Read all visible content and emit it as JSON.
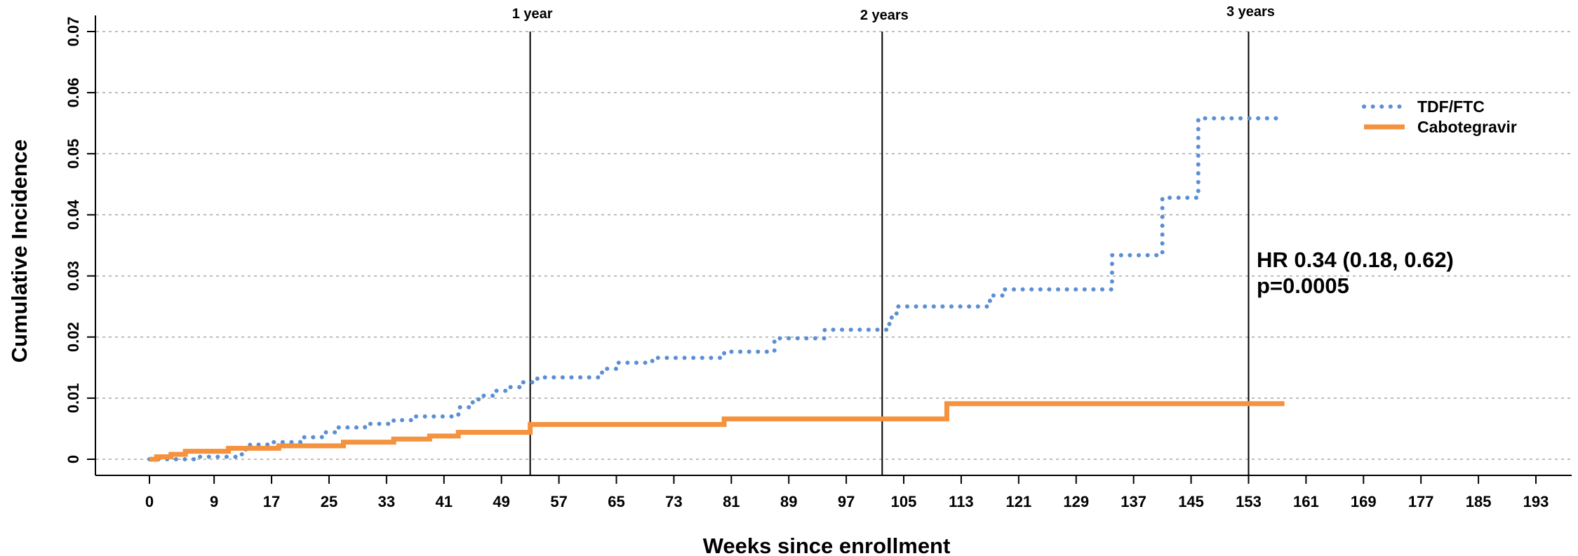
{
  "chart_data": {
    "type": "line",
    "title": "",
    "xlabel": "Weeks since enrollment",
    "ylabel": "Cumulative Incidence",
    "xlim": [
      -4,
      198
    ],
    "ylim": [
      0,
      0.07
    ],
    "x_ticks": [
      0,
      9,
      17,
      25,
      33,
      41,
      49,
      57,
      65,
      73,
      81,
      89,
      97,
      105,
      113,
      121,
      129,
      137,
      145,
      153,
      161,
      169,
      177,
      185,
      193
    ],
    "y_ticks": [
      0,
      0.01,
      0.02,
      0.03,
      0.04,
      0.05,
      0.06,
      0.07
    ],
    "y_tick_labels": [
      "0",
      "0.01",
      "0.02",
      "0.03",
      "0.04",
      "0.05",
      "0.06",
      "0.07"
    ],
    "grid": "horizontal dotted",
    "legend_position": "top-right",
    "reference_lines": [
      {
        "x": 53,
        "label": "1 year"
      },
      {
        "x": 102,
        "label": "2 years"
      },
      {
        "x": 153,
        "label": "3 years"
      }
    ],
    "annotations": [
      "HR 0.34 (0.18, 0.62)",
      "p=0.0005"
    ],
    "series": [
      {
        "name": "TDF/FTC",
        "style": "dotted",
        "color": "#5b8fd4",
        "points": [
          [
            0,
            0
          ],
          [
            7,
            0.0004
          ],
          [
            12,
            0.0008
          ],
          [
            13,
            0.0016
          ],
          [
            14,
            0.0024
          ],
          [
            17,
            0.0028
          ],
          [
            21,
            0.0036
          ],
          [
            24,
            0.0044
          ],
          [
            26,
            0.0052
          ],
          [
            30,
            0.0058
          ],
          [
            34,
            0.0064
          ],
          [
            37,
            0.007
          ],
          [
            43,
            0.0085
          ],
          [
            45,
            0.0098
          ],
          [
            46,
            0.0104
          ],
          [
            48,
            0.0112
          ],
          [
            50,
            0.0118
          ],
          [
            52,
            0.0126
          ],
          [
            54,
            0.0134
          ],
          [
            63,
            0.0148
          ],
          [
            65,
            0.0158
          ],
          [
            70,
            0.0166
          ],
          [
            80,
            0.0176
          ],
          [
            87,
            0.0198
          ],
          [
            94,
            0.0212
          ],
          [
            103,
            0.0232
          ],
          [
            104,
            0.025
          ],
          [
            117,
            0.0268
          ],
          [
            119,
            0.0278
          ],
          [
            134,
            0.0334
          ],
          [
            141,
            0.0428
          ],
          [
            146,
            0.0558
          ],
          [
            157,
            0.0558
          ]
        ]
      },
      {
        "name": "Cabotegravir",
        "style": "solid",
        "color": "#f4923e",
        "points": [
          [
            0,
            0
          ],
          [
            1,
            0.0004
          ],
          [
            3,
            0.0008
          ],
          [
            5,
            0.0013
          ],
          [
            11,
            0.0018
          ],
          [
            18,
            0.0022
          ],
          [
            27,
            0.0028
          ],
          [
            34,
            0.0033
          ],
          [
            39,
            0.0038
          ],
          [
            43,
            0.0044
          ],
          [
            53,
            0.0057
          ],
          [
            80,
            0.0066
          ],
          [
            111,
            0.0091
          ],
          [
            158,
            0.0091
          ]
        ]
      }
    ]
  }
}
